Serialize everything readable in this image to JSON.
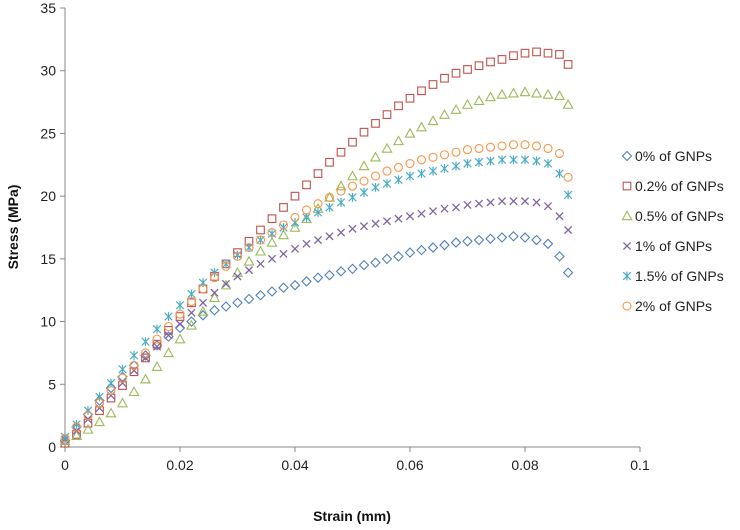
{
  "chart_data": {
    "type": "scatter",
    "title": "",
    "xlabel": "Strain (mm)",
    "ylabel": "Stress (MPa)",
    "xlim": [
      0,
      0.1
    ],
    "ylim": [
      0,
      35
    ],
    "x_ticks": [
      "0",
      "0.02",
      "0.04",
      "0.06",
      "0.08",
      "0.1"
    ],
    "y_ticks": [
      "0",
      "5",
      "10",
      "15",
      "20",
      "25",
      "30",
      "35"
    ],
    "grid": false,
    "legend_position": "right",
    "series": [
      {
        "name": "0% of GNPs",
        "marker": "diamond",
        "color": "#4F81BD",
        "points": [
          [
            0,
            0.5
          ],
          [
            0.002,
            1.6
          ],
          [
            0.004,
            2.6
          ],
          [
            0.006,
            3.7
          ],
          [
            0.008,
            4.7
          ],
          [
            0.01,
            5.6
          ],
          [
            0.012,
            6.5
          ],
          [
            0.014,
            7.3
          ],
          [
            0.016,
            8.1
          ],
          [
            0.018,
            8.8
          ],
          [
            0.02,
            9.5
          ],
          [
            0.022,
            10.0
          ],
          [
            0.024,
            10.5
          ],
          [
            0.026,
            10.9
          ],
          [
            0.028,
            11.2
          ],
          [
            0.03,
            11.5
          ],
          [
            0.032,
            11.8
          ],
          [
            0.034,
            12.1
          ],
          [
            0.036,
            12.4
          ],
          [
            0.038,
            12.7
          ],
          [
            0.04,
            12.9
          ],
          [
            0.042,
            13.2
          ],
          [
            0.044,
            13.5
          ],
          [
            0.046,
            13.7
          ],
          [
            0.048,
            14.0
          ],
          [
            0.05,
            14.2
          ],
          [
            0.052,
            14.5
          ],
          [
            0.054,
            14.7
          ],
          [
            0.056,
            15.0
          ],
          [
            0.058,
            15.2
          ],
          [
            0.06,
            15.5
          ],
          [
            0.062,
            15.7
          ],
          [
            0.064,
            15.9
          ],
          [
            0.066,
            16.1
          ],
          [
            0.068,
            16.3
          ],
          [
            0.07,
            16.4
          ],
          [
            0.072,
            16.5
          ],
          [
            0.074,
            16.6
          ],
          [
            0.076,
            16.7
          ],
          [
            0.078,
            16.8
          ],
          [
            0.08,
            16.7
          ],
          [
            0.082,
            16.5
          ],
          [
            0.084,
            16.2
          ],
          [
            0.086,
            15.2
          ],
          [
            0.0875,
            13.9
          ]
        ]
      },
      {
        "name": "0.2% of GNPs",
        "marker": "square",
        "color": "#C0504D",
        "points": [
          [
            0,
            0.3
          ],
          [
            0.002,
            1.0
          ],
          [
            0.004,
            1.9
          ],
          [
            0.006,
            2.9
          ],
          [
            0.008,
            3.9
          ],
          [
            0.01,
            4.9
          ],
          [
            0.012,
            6.0
          ],
          [
            0.014,
            7.1
          ],
          [
            0.016,
            8.2
          ],
          [
            0.018,
            9.3
          ],
          [
            0.02,
            10.4
          ],
          [
            0.022,
            11.5
          ],
          [
            0.024,
            12.6
          ],
          [
            0.026,
            13.6
          ],
          [
            0.028,
            14.6
          ],
          [
            0.03,
            15.5
          ],
          [
            0.032,
            16.4
          ],
          [
            0.034,
            17.3
          ],
          [
            0.036,
            18.2
          ],
          [
            0.038,
            19.1
          ],
          [
            0.04,
            20.0
          ],
          [
            0.042,
            20.9
          ],
          [
            0.044,
            21.8
          ],
          [
            0.046,
            22.7
          ],
          [
            0.048,
            23.5
          ],
          [
            0.05,
            24.3
          ],
          [
            0.052,
            25.1
          ],
          [
            0.054,
            25.8
          ],
          [
            0.056,
            26.5
          ],
          [
            0.058,
            27.2
          ],
          [
            0.06,
            27.8
          ],
          [
            0.062,
            28.4
          ],
          [
            0.064,
            28.9
          ],
          [
            0.066,
            29.4
          ],
          [
            0.068,
            29.8
          ],
          [
            0.07,
            30.1
          ],
          [
            0.072,
            30.4
          ],
          [
            0.074,
            30.7
          ],
          [
            0.076,
            30.9
          ],
          [
            0.078,
            31.2
          ],
          [
            0.08,
            31.4
          ],
          [
            0.082,
            31.5
          ],
          [
            0.084,
            31.4
          ],
          [
            0.086,
            31.3
          ],
          [
            0.0875,
            30.5
          ]
        ]
      },
      {
        "name": "0.5% of GNPs",
        "marker": "triangle",
        "color": "#9BBB59",
        "points": [
          [
            0,
            0.5
          ],
          [
            0.002,
            0.9
          ],
          [
            0.004,
            1.4
          ],
          [
            0.006,
            2.0
          ],
          [
            0.008,
            2.7
          ],
          [
            0.01,
            3.5
          ],
          [
            0.012,
            4.4
          ],
          [
            0.014,
            5.4
          ],
          [
            0.016,
            6.4
          ],
          [
            0.018,
            7.5
          ],
          [
            0.02,
            8.6
          ],
          [
            0.022,
            9.7
          ],
          [
            0.024,
            10.8
          ],
          [
            0.026,
            11.9
          ],
          [
            0.028,
            12.9
          ],
          [
            0.03,
            13.9
          ],
          [
            0.032,
            14.8
          ],
          [
            0.034,
            15.6
          ],
          [
            0.036,
            16.3
          ],
          [
            0.038,
            16.9
          ],
          [
            0.04,
            17.5
          ],
          [
            0.042,
            18.2
          ],
          [
            0.044,
            19.0
          ],
          [
            0.046,
            19.9
          ],
          [
            0.048,
            20.8
          ],
          [
            0.05,
            21.6
          ],
          [
            0.052,
            22.4
          ],
          [
            0.054,
            23.1
          ],
          [
            0.056,
            23.8
          ],
          [
            0.058,
            24.4
          ],
          [
            0.06,
            25.0
          ],
          [
            0.062,
            25.5
          ],
          [
            0.064,
            26.0
          ],
          [
            0.066,
            26.5
          ],
          [
            0.068,
            26.9
          ],
          [
            0.07,
            27.3
          ],
          [
            0.072,
            27.6
          ],
          [
            0.074,
            27.9
          ],
          [
            0.076,
            28.1
          ],
          [
            0.078,
            28.2
          ],
          [
            0.08,
            28.3
          ],
          [
            0.082,
            28.2
          ],
          [
            0.084,
            28.1
          ],
          [
            0.086,
            28.0
          ],
          [
            0.0875,
            27.3
          ]
        ]
      },
      {
        "name": "1% of GNPs",
        "marker": "x",
        "color": "#8064A2",
        "points": [
          [
            0,
            0.6
          ],
          [
            0.002,
            1.3
          ],
          [
            0.004,
            2.2
          ],
          [
            0.006,
            3.1
          ],
          [
            0.008,
            4.1
          ],
          [
            0.01,
            5.1
          ],
          [
            0.012,
            6.1
          ],
          [
            0.014,
            7.1
          ],
          [
            0.016,
            8.0
          ],
          [
            0.018,
            8.9
          ],
          [
            0.02,
            9.8
          ],
          [
            0.022,
            10.7
          ],
          [
            0.024,
            11.5
          ],
          [
            0.026,
            12.3
          ],
          [
            0.028,
            13.0
          ],
          [
            0.03,
            13.6
          ],
          [
            0.032,
            14.1
          ],
          [
            0.034,
            14.6
          ],
          [
            0.036,
            15.0
          ],
          [
            0.038,
            15.4
          ],
          [
            0.04,
            15.8
          ],
          [
            0.042,
            16.2
          ],
          [
            0.044,
            16.5
          ],
          [
            0.046,
            16.8
          ],
          [
            0.048,
            17.1
          ],
          [
            0.05,
            17.4
          ],
          [
            0.052,
            17.6
          ],
          [
            0.054,
            17.8
          ],
          [
            0.056,
            18.0
          ],
          [
            0.058,
            18.2
          ],
          [
            0.06,
            18.4
          ],
          [
            0.062,
            18.6
          ],
          [
            0.064,
            18.8
          ],
          [
            0.066,
            19.0
          ],
          [
            0.068,
            19.1
          ],
          [
            0.07,
            19.3
          ],
          [
            0.072,
            19.4
          ],
          [
            0.074,
            19.5
          ],
          [
            0.076,
            19.6
          ],
          [
            0.078,
            19.6
          ],
          [
            0.08,
            19.6
          ],
          [
            0.082,
            19.5
          ],
          [
            0.084,
            19.2
          ],
          [
            0.086,
            18.4
          ],
          [
            0.0875,
            17.3
          ]
        ]
      },
      {
        "name": "1.5% of GNPs",
        "marker": "asterisk",
        "color": "#4BACC6",
        "points": [
          [
            0,
            0.8
          ],
          [
            0.002,
            1.8
          ],
          [
            0.004,
            2.9
          ],
          [
            0.006,
            4.0
          ],
          [
            0.008,
            5.1
          ],
          [
            0.01,
            6.2
          ],
          [
            0.012,
            7.3
          ],
          [
            0.014,
            8.4
          ],
          [
            0.016,
            9.4
          ],
          [
            0.018,
            10.4
          ],
          [
            0.02,
            11.3
          ],
          [
            0.022,
            12.2
          ],
          [
            0.024,
            13.1
          ],
          [
            0.026,
            13.9
          ],
          [
            0.028,
            14.6
          ],
          [
            0.03,
            15.3
          ],
          [
            0.032,
            15.9
          ],
          [
            0.034,
            16.5
          ],
          [
            0.036,
            17.0
          ],
          [
            0.038,
            17.5
          ],
          [
            0.04,
            17.9
          ],
          [
            0.042,
            18.3
          ],
          [
            0.044,
            18.7
          ],
          [
            0.046,
            19.1
          ],
          [
            0.048,
            19.5
          ],
          [
            0.05,
            19.9
          ],
          [
            0.052,
            20.3
          ],
          [
            0.054,
            20.7
          ],
          [
            0.056,
            21.0
          ],
          [
            0.058,
            21.3
          ],
          [
            0.06,
            21.6
          ],
          [
            0.062,
            21.8
          ],
          [
            0.064,
            22.0
          ],
          [
            0.066,
            22.2
          ],
          [
            0.068,
            22.4
          ],
          [
            0.07,
            22.6
          ],
          [
            0.072,
            22.7
          ],
          [
            0.074,
            22.8
          ],
          [
            0.076,
            22.9
          ],
          [
            0.078,
            22.9
          ],
          [
            0.08,
            22.9
          ],
          [
            0.082,
            22.8
          ],
          [
            0.084,
            22.6
          ],
          [
            0.086,
            21.8
          ],
          [
            0.0875,
            20.1
          ]
        ]
      },
      {
        "name": "2% of GNPs",
        "marker": "circle",
        "color": "#F79646",
        "points": [
          [
            0,
            0.7
          ],
          [
            0.002,
            1.6
          ],
          [
            0.004,
            2.5
          ],
          [
            0.006,
            3.5
          ],
          [
            0.008,
            4.5
          ],
          [
            0.01,
            5.5
          ],
          [
            0.012,
            6.5
          ],
          [
            0.014,
            7.5
          ],
          [
            0.016,
            8.6
          ],
          [
            0.018,
            9.6
          ],
          [
            0.02,
            10.6
          ],
          [
            0.022,
            11.6
          ],
          [
            0.024,
            12.6
          ],
          [
            0.026,
            13.5
          ],
          [
            0.028,
            14.4
          ],
          [
            0.03,
            15.2
          ],
          [
            0.032,
            15.9
          ],
          [
            0.034,
            16.5
          ],
          [
            0.036,
            17.1
          ],
          [
            0.038,
            17.7
          ],
          [
            0.04,
            18.3
          ],
          [
            0.042,
            18.9
          ],
          [
            0.044,
            19.4
          ],
          [
            0.046,
            19.9
          ],
          [
            0.048,
            20.4
          ],
          [
            0.05,
            20.8
          ],
          [
            0.052,
            21.2
          ],
          [
            0.054,
            21.6
          ],
          [
            0.056,
            22.0
          ],
          [
            0.058,
            22.3
          ],
          [
            0.06,
            22.6
          ],
          [
            0.062,
            22.9
          ],
          [
            0.064,
            23.1
          ],
          [
            0.066,
            23.3
          ],
          [
            0.068,
            23.5
          ],
          [
            0.07,
            23.7
          ],
          [
            0.072,
            23.8
          ],
          [
            0.074,
            23.9
          ],
          [
            0.076,
            24.0
          ],
          [
            0.078,
            24.1
          ],
          [
            0.08,
            24.1
          ],
          [
            0.082,
            24.0
          ],
          [
            0.084,
            23.8
          ],
          [
            0.086,
            23.4
          ],
          [
            0.0875,
            21.5
          ]
        ]
      }
    ]
  }
}
